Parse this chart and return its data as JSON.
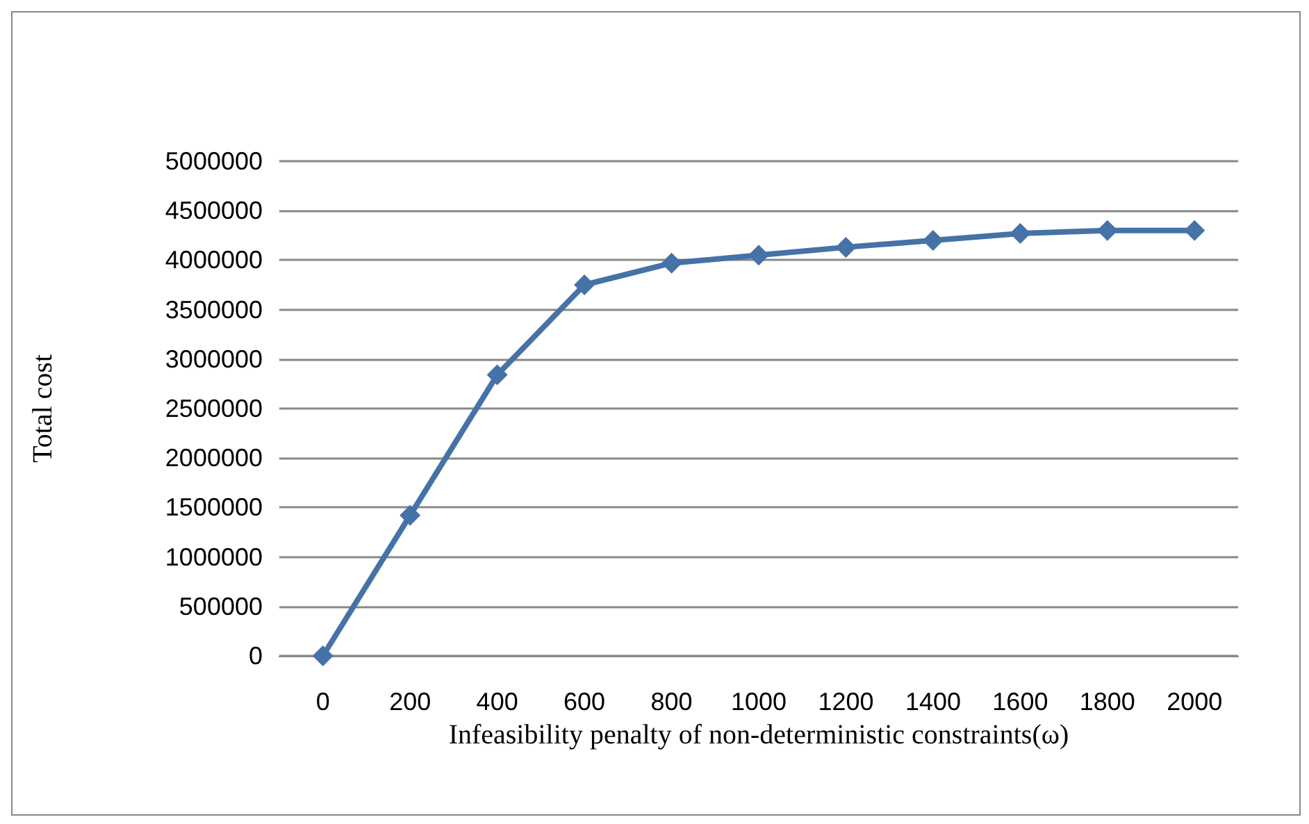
{
  "chart_data": {
    "type": "line",
    "xlabel": "Infeasibility penalty of non-deterministic constraints(ω)",
    "ylabel": "Total cost",
    "categories": [
      "0",
      "200",
      "400",
      "600",
      "800",
      "1000",
      "1200",
      "1400",
      "1600",
      "1800",
      "2000"
    ],
    "series": [
      {
        "color": "#4572a7",
        "values": [
          0,
          1420000,
          2840000,
          3750000,
          3970000,
          4050000,
          4130000,
          4200000,
          4270000,
          4300000,
          4300000
        ]
      }
    ],
    "ylim": [
      0,
      5000000
    ],
    "yticks": [
      0,
      500000,
      1000000,
      1500000,
      2000000,
      2500000,
      3000000,
      3500000,
      4000000,
      4500000,
      5000000
    ],
    "grid": "y",
    "marker": "diamond",
    "line_style": "solid"
  }
}
